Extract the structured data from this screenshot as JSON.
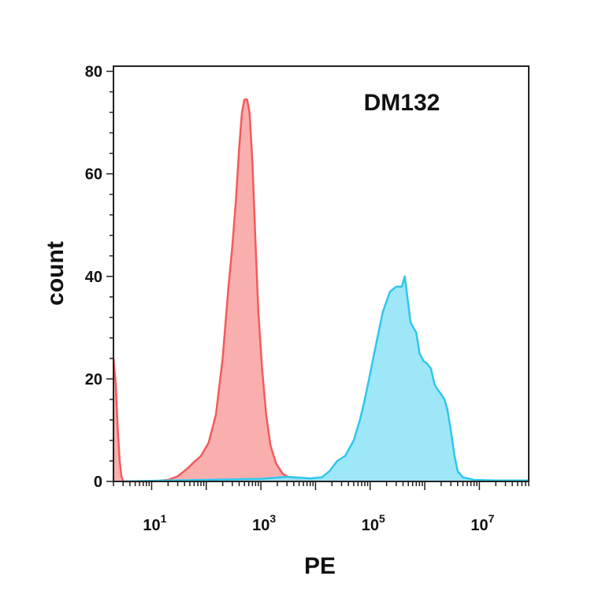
{
  "chart_data": {
    "type": "area",
    "title": "",
    "annotation": "DM132",
    "xlabel": "PE",
    "ylabel": "count",
    "x_scale": "log",
    "xlim": [
      2,
      80000000
    ],
    "ylim": [
      0,
      81
    ],
    "y_ticks": [
      0,
      20,
      40,
      60,
      80
    ],
    "y_tick_labels": [
      "0",
      "20",
      "40",
      "60",
      "80"
    ],
    "x_ticks": [
      {
        "value": 10,
        "base": "10",
        "exp": "1"
      },
      {
        "value": 1000,
        "base": "10",
        "exp": "3"
      },
      {
        "value": 100000,
        "base": "10",
        "exp": "5"
      },
      {
        "value": 10000000,
        "base": "10",
        "exp": "7"
      }
    ],
    "grid": false,
    "legend": "none",
    "series": [
      {
        "color": "#f45a5a",
        "fill": "#f9a6a6",
        "points": [
          [
            2,
            24
          ],
          [
            2.2,
            19
          ],
          [
            2.4,
            10
          ],
          [
            2.6,
            4
          ],
          [
            2.8,
            1
          ],
          [
            3,
            0
          ],
          [
            10,
            0
          ],
          [
            20,
            0.3
          ],
          [
            30,
            1
          ],
          [
            45,
            2.5
          ],
          [
            60,
            3.8
          ],
          [
            80,
            5
          ],
          [
            110,
            7.5
          ],
          [
            150,
            13
          ],
          [
            200,
            24
          ],
          [
            250,
            37
          ],
          [
            300,
            46
          ],
          [
            350,
            55
          ],
          [
            400,
            65
          ],
          [
            450,
            72
          ],
          [
            500,
            74.5
          ],
          [
            560,
            74.5
          ],
          [
            620,
            72
          ],
          [
            700,
            62
          ],
          [
            800,
            46
          ],
          [
            900,
            33
          ],
          [
            1050,
            22
          ],
          [
            1250,
            13
          ],
          [
            1500,
            7
          ],
          [
            1900,
            3.5
          ],
          [
            2500,
            1.5
          ],
          [
            3500,
            0.6
          ],
          [
            6000,
            0.2
          ],
          [
            20000,
            0
          ]
        ]
      },
      {
        "color": "#2fc6ee",
        "fill": "#93e4f8",
        "points": [
          [
            3,
            0
          ],
          [
            20,
            0.2
          ],
          [
            100,
            0.3
          ],
          [
            1000,
            0.5
          ],
          [
            3000,
            0.9
          ],
          [
            8000,
            0.6
          ],
          [
            13000,
            0.8
          ],
          [
            18000,
            2
          ],
          [
            25000,
            4
          ],
          [
            35000,
            5
          ],
          [
            50000,
            8
          ],
          [
            65000,
            12
          ],
          [
            80000,
            16
          ],
          [
            100000,
            21
          ],
          [
            130000,
            27
          ],
          [
            170000,
            33
          ],
          [
            230000,
            37
          ],
          [
            300000,
            38
          ],
          [
            380000,
            38
          ],
          [
            430000,
            40
          ],
          [
            480000,
            36
          ],
          [
            550000,
            31
          ],
          [
            620000,
            30
          ],
          [
            700000,
            29
          ],
          [
            800000,
            25
          ],
          [
            950000,
            23.5
          ],
          [
            1100000,
            23
          ],
          [
            1300000,
            22
          ],
          [
            1500000,
            19
          ],
          [
            1700000,
            18
          ],
          [
            2000000,
            17
          ],
          [
            2300000,
            16
          ],
          [
            2600000,
            14
          ],
          [
            3000000,
            10
          ],
          [
            3500000,
            5
          ],
          [
            4000000,
            2
          ],
          [
            5000000,
            0.8
          ],
          [
            8000000,
            0.3
          ],
          [
            20000000,
            0.2
          ],
          [
            80000000,
            0.2
          ]
        ]
      }
    ]
  }
}
